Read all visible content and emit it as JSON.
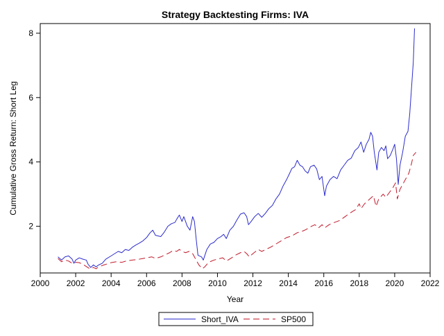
{
  "chart_data": {
    "type": "line",
    "title": "Strategy Backtesting  Firms: IVA",
    "xlabel": "Year",
    "ylabel": "Cumulative Gross Return: Short Leg",
    "xlim": [
      2000,
      2022
    ],
    "ylim": [
      0.55,
      8.3
    ],
    "x_ticks": [
      2000,
      2002,
      2004,
      2006,
      2008,
      2010,
      2012,
      2014,
      2016,
      2018,
      2020,
      2022
    ],
    "y_ticks": [
      2,
      4,
      6,
      8
    ],
    "grid": false,
    "legend": "bottom",
    "series": [
      {
        "name": "Short_IVA",
        "color": "#2b2bcc",
        "dash": "solid",
        "points": [
          [
            2001.0,
            1.05
          ],
          [
            2001.2,
            0.95
          ],
          [
            2001.4,
            1.05
          ],
          [
            2001.6,
            1.08
          ],
          [
            2001.8,
            0.98
          ],
          [
            2001.9,
            0.85
          ],
          [
            2002.0,
            0.95
          ],
          [
            2002.2,
            1.02
          ],
          [
            2002.4,
            0.98
          ],
          [
            2002.6,
            0.95
          ],
          [
            2002.7,
            0.82
          ],
          [
            2002.85,
            0.72
          ],
          [
            2003.0,
            0.8
          ],
          [
            2003.15,
            0.74
          ],
          [
            2003.3,
            0.8
          ],
          [
            2003.5,
            0.85
          ],
          [
            2003.7,
            0.98
          ],
          [
            2004.0,
            1.08
          ],
          [
            2004.2,
            1.15
          ],
          [
            2004.4,
            1.22
          ],
          [
            2004.6,
            1.18
          ],
          [
            2004.8,
            1.28
          ],
          [
            2005.0,
            1.25
          ],
          [
            2005.2,
            1.35
          ],
          [
            2005.4,
            1.42
          ],
          [
            2005.6,
            1.48
          ],
          [
            2005.8,
            1.55
          ],
          [
            2006.0,
            1.65
          ],
          [
            2006.2,
            1.8
          ],
          [
            2006.35,
            1.88
          ],
          [
            2006.5,
            1.72
          ],
          [
            2006.8,
            1.68
          ],
          [
            2007.0,
            1.82
          ],
          [
            2007.2,
            2.0
          ],
          [
            2007.4,
            2.08
          ],
          [
            2007.6,
            2.12
          ],
          [
            2007.7,
            2.22
          ],
          [
            2007.85,
            2.35
          ],
          [
            2008.0,
            2.15
          ],
          [
            2008.1,
            2.3
          ],
          [
            2008.3,
            2.0
          ],
          [
            2008.45,
            1.88
          ],
          [
            2008.6,
            2.3
          ],
          [
            2008.7,
            2.15
          ],
          [
            2008.8,
            1.6
          ],
          [
            2008.9,
            1.1
          ],
          [
            2009.1,
            1.05
          ],
          [
            2009.2,
            0.95
          ],
          [
            2009.4,
            1.28
          ],
          [
            2009.6,
            1.45
          ],
          [
            2009.8,
            1.5
          ],
          [
            2010.0,
            1.62
          ],
          [
            2010.2,
            1.68
          ],
          [
            2010.35,
            1.75
          ],
          [
            2010.5,
            1.62
          ],
          [
            2010.7,
            1.88
          ],
          [
            2010.9,
            2.0
          ],
          [
            2011.1,
            2.2
          ],
          [
            2011.3,
            2.38
          ],
          [
            2011.5,
            2.42
          ],
          [
            2011.65,
            2.3
          ],
          [
            2011.75,
            2.05
          ],
          [
            2011.9,
            2.15
          ],
          [
            2012.1,
            2.3
          ],
          [
            2012.3,
            2.4
          ],
          [
            2012.5,
            2.28
          ],
          [
            2012.7,
            2.4
          ],
          [
            2012.9,
            2.55
          ],
          [
            2013.1,
            2.65
          ],
          [
            2013.3,
            2.85
          ],
          [
            2013.5,
            3.0
          ],
          [
            2013.7,
            3.25
          ],
          [
            2013.9,
            3.45
          ],
          [
            2014.05,
            3.62
          ],
          [
            2014.2,
            3.8
          ],
          [
            2014.35,
            3.85
          ],
          [
            2014.5,
            4.05
          ],
          [
            2014.65,
            3.9
          ],
          [
            2014.8,
            3.85
          ],
          [
            2014.95,
            3.72
          ],
          [
            2015.1,
            3.65
          ],
          [
            2015.25,
            3.85
          ],
          [
            2015.45,
            3.9
          ],
          [
            2015.6,
            3.78
          ],
          [
            2015.75,
            3.45
          ],
          [
            2015.9,
            3.55
          ],
          [
            2016.05,
            2.95
          ],
          [
            2016.15,
            3.25
          ],
          [
            2016.35,
            3.45
          ],
          [
            2016.55,
            3.55
          ],
          [
            2016.75,
            3.48
          ],
          [
            2016.95,
            3.75
          ],
          [
            2017.15,
            3.9
          ],
          [
            2017.35,
            4.05
          ],
          [
            2017.55,
            4.12
          ],
          [
            2017.75,
            4.35
          ],
          [
            2017.95,
            4.45
          ],
          [
            2018.1,
            4.62
          ],
          [
            2018.25,
            4.3
          ],
          [
            2018.4,
            4.55
          ],
          [
            2018.55,
            4.7
          ],
          [
            2018.65,
            4.92
          ],
          [
            2018.75,
            4.8
          ],
          [
            2018.85,
            4.3
          ],
          [
            2019.0,
            3.75
          ],
          [
            2019.1,
            4.3
          ],
          [
            2019.25,
            4.45
          ],
          [
            2019.4,
            4.35
          ],
          [
            2019.5,
            4.5
          ],
          [
            2019.6,
            4.1
          ],
          [
            2019.75,
            4.2
          ],
          [
            2019.9,
            4.4
          ],
          [
            2020.0,
            4.55
          ],
          [
            2020.1,
            4.1
          ],
          [
            2020.2,
            3.3
          ],
          [
            2020.3,
            3.9
          ],
          [
            2020.45,
            4.3
          ],
          [
            2020.6,
            4.8
          ],
          [
            2020.75,
            4.95
          ],
          [
            2020.85,
            5.5
          ],
          [
            2020.95,
            6.3
          ],
          [
            2021.05,
            7.1
          ],
          [
            2021.12,
            8.15
          ]
        ]
      },
      {
        "name": "SP500",
        "color": "#c0182a",
        "dash": "dashed",
        "points": [
          [
            2001.0,
            1.0
          ],
          [
            2001.2,
            0.9
          ],
          [
            2001.4,
            0.95
          ],
          [
            2001.6,
            0.92
          ],
          [
            2001.8,
            0.85
          ],
          [
            2002.0,
            0.88
          ],
          [
            2002.2,
            0.87
          ],
          [
            2002.4,
            0.82
          ],
          [
            2002.6,
            0.75
          ],
          [
            2002.8,
            0.68
          ],
          [
            2003.0,
            0.72
          ],
          [
            2003.15,
            0.68
          ],
          [
            2003.3,
            0.74
          ],
          [
            2003.6,
            0.8
          ],
          [
            2004.0,
            0.87
          ],
          [
            2004.3,
            0.9
          ],
          [
            2004.6,
            0.88
          ],
          [
            2004.9,
            0.93
          ],
          [
            2005.2,
            0.95
          ],
          [
            2005.5,
            0.97
          ],
          [
            2005.8,
            1.0
          ],
          [
            2006.0,
            1.02
          ],
          [
            2006.3,
            1.05
          ],
          [
            2006.5,
            1.0
          ],
          [
            2006.8,
            1.05
          ],
          [
            2007.0,
            1.1
          ],
          [
            2007.3,
            1.18
          ],
          [
            2007.5,
            1.25
          ],
          [
            2007.7,
            1.22
          ],
          [
            2007.85,
            1.28
          ],
          [
            2008.0,
            1.22
          ],
          [
            2008.2,
            1.18
          ],
          [
            2008.4,
            1.22
          ],
          [
            2008.6,
            1.15
          ],
          [
            2008.8,
            0.95
          ],
          [
            2008.95,
            0.8
          ],
          [
            2009.15,
            0.68
          ],
          [
            2009.3,
            0.75
          ],
          [
            2009.5,
            0.88
          ],
          [
            2009.8,
            0.95
          ],
          [
            2010.0,
            0.98
          ],
          [
            2010.3,
            1.02
          ],
          [
            2010.5,
            0.92
          ],
          [
            2010.8,
            1.02
          ],
          [
            2011.0,
            1.1
          ],
          [
            2011.3,
            1.18
          ],
          [
            2011.5,
            1.22
          ],
          [
            2011.65,
            1.15
          ],
          [
            2011.8,
            1.05
          ],
          [
            2012.0,
            1.15
          ],
          [
            2012.3,
            1.28
          ],
          [
            2012.5,
            1.22
          ],
          [
            2012.8,
            1.3
          ],
          [
            2013.0,
            1.35
          ],
          [
            2013.3,
            1.45
          ],
          [
            2013.6,
            1.55
          ],
          [
            2013.9,
            1.65
          ],
          [
            2014.2,
            1.7
          ],
          [
            2014.5,
            1.8
          ],
          [
            2014.8,
            1.85
          ],
          [
            2015.0,
            1.9
          ],
          [
            2015.3,
            2.0
          ],
          [
            2015.5,
            2.05
          ],
          [
            2015.7,
            1.95
          ],
          [
            2015.9,
            2.05
          ],
          [
            2016.05,
            1.95
          ],
          [
            2016.3,
            2.05
          ],
          [
            2016.6,
            2.12
          ],
          [
            2016.9,
            2.18
          ],
          [
            2017.2,
            2.3
          ],
          [
            2017.5,
            2.42
          ],
          [
            2017.8,
            2.52
          ],
          [
            2018.0,
            2.7
          ],
          [
            2018.1,
            2.55
          ],
          [
            2018.3,
            2.7
          ],
          [
            2018.6,
            2.85
          ],
          [
            2018.8,
            2.95
          ],
          [
            2018.95,
            2.62
          ],
          [
            2019.1,
            2.85
          ],
          [
            2019.35,
            3.0
          ],
          [
            2019.5,
            2.9
          ],
          [
            2019.7,
            3.05
          ],
          [
            2019.9,
            3.2
          ],
          [
            2020.05,
            3.35
          ],
          [
            2020.15,
            2.85
          ],
          [
            2020.3,
            3.15
          ],
          [
            2020.5,
            3.35
          ],
          [
            2020.7,
            3.55
          ],
          [
            2020.8,
            3.65
          ],
          [
            2020.95,
            3.95
          ],
          [
            2021.05,
            4.2
          ],
          [
            2021.2,
            4.3
          ]
        ]
      }
    ]
  }
}
